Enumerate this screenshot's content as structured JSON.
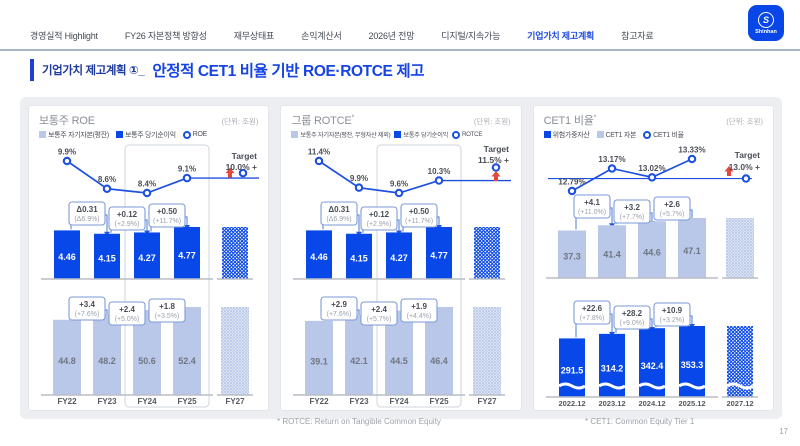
{
  "nav": {
    "items": [
      {
        "label": "경영실적 Highlight",
        "active": false
      },
      {
        "label": "FY26 자본정책 방향성",
        "active": false
      },
      {
        "label": "재무상태표",
        "active": false
      },
      {
        "label": "손익계산서",
        "active": false
      },
      {
        "label": "2026년 전망",
        "active": false
      },
      {
        "label": "디지털/지속가능",
        "active": false
      },
      {
        "label": "기업가치 제고계획",
        "active": true
      },
      {
        "label": "참고자료",
        "active": false
      }
    ]
  },
  "logo": {
    "mark": "S",
    "name": "Shinhan"
  },
  "title": {
    "prefix": "기업가치 제고계획 ①_",
    "main": "안정적 CET1 비율 기반 ROE·ROTCE 제고"
  },
  "footnotes": [
    "* ROTCE: Return on Tangible Common Equity",
    "* CET1: Common Equity Tier 1"
  ],
  "page_number": "17",
  "colors": {
    "brand_blue": "#0948E8",
    "bar_light": "#B9C8E8",
    "line_blue": "#1D50E0",
    "connector_blue": "#6C8FD8",
    "box_border": "#7E9AD8",
    "red_arrow": "#E5483D",
    "band_bg": "#ECEEF1",
    "title_blue": "#1543E4",
    "baseline_gray": "#B9BEC6"
  },
  "chart_data": [
    {
      "type": "bar",
      "title": "보통주 ROE",
      "sup": "",
      "unit": "(단위: 조원)",
      "legend": [
        {
          "swatch": "light",
          "label": "보통주 자기자본(평잔)"
        },
        {
          "swatch": "dark",
          "label": "보통주 당기순이익"
        },
        {
          "swatch": "circle",
          "label": "ROE"
        }
      ],
      "categories": [
        "FY22",
        "FY23",
        "FY24",
        "FY25"
      ],
      "future_category": "FY27",
      "line": {
        "name": "ROE",
        "values": [
          9.9,
          8.6,
          8.4,
          9.1
        ],
        "labels": [
          "9.9%",
          "8.6%",
          "8.4%",
          "9.1%"
        ],
        "target": 10.0,
        "target_text": "Target",
        "target_label": "10.0% +"
      },
      "series": [
        {
          "name": "보통주 당기순이익",
          "style": "dark",
          "values": [
            4.46,
            4.15,
            4.27,
            4.77
          ],
          "value_labels": [
            "4.46",
            "4.15",
            "4.27",
            "4.77"
          ],
          "changes": [
            {
              "abs": "Δ0.31",
              "pct": "(Δ6.9%)"
            },
            {
              "abs": "+0.12",
              "pct": "(+2.9%)"
            },
            {
              "abs": "+0.50",
              "pct": "(+11.7%)"
            }
          ]
        },
        {
          "name": "보통주 자기자본(평잔)",
          "style": "light",
          "values": [
            44.8,
            48.2,
            50.6,
            52.4
          ],
          "value_labels": [
            "44.8",
            "48.2",
            "50.6",
            "52.4"
          ],
          "changes": [
            {
              "abs": "+3.4",
              "pct": "(+7.6%)"
            },
            {
              "abs": "+2.4",
              "pct": "(+5.0%)"
            },
            {
              "abs": "+1.8",
              "pct": "(+3.5%)"
            }
          ]
        }
      ],
      "highlight_box": true
    },
    {
      "type": "bar",
      "title": "그룹 ROTCE",
      "sup": "*",
      "unit": "(단위: 조원)",
      "legend": [
        {
          "swatch": "light",
          "label": "보통주 자기자본(평잔, 무형자산 제외)"
        },
        {
          "swatch": "dark",
          "label": "보통주 당기순이익"
        },
        {
          "swatch": "circle",
          "label": "ROTCE"
        }
      ],
      "categories": [
        "FY22",
        "FY23",
        "FY24",
        "FY25"
      ],
      "future_category": "FY27",
      "line": {
        "name": "ROTCE",
        "values": [
          11.4,
          9.9,
          9.6,
          10.3
        ],
        "labels": [
          "11.4%",
          "9.9%",
          "9.6%",
          "10.3%"
        ],
        "target": 11.5,
        "target_text": "Target",
        "target_label": "11.5% +"
      },
      "series": [
        {
          "name": "보통주 당기순이익",
          "style": "dark",
          "values": [
            4.46,
            4.15,
            4.27,
            4.77
          ],
          "value_labels": [
            "4.46",
            "4.15",
            "4.27",
            "4.77"
          ],
          "changes": [
            {
              "abs": "Δ0.31",
              "pct": "(Δ6.9%)"
            },
            {
              "abs": "+0.12",
              "pct": "(+2.9%)"
            },
            {
              "abs": "+0.50",
              "pct": "(+11.7%)"
            }
          ]
        },
        {
          "name": "보통주 자기자본(평잔, 무형자산 제외)",
          "style": "light",
          "values": [
            39.1,
            42.1,
            44.5,
            46.4
          ],
          "value_labels": [
            "39.1",
            "42.1",
            "44.5",
            "46.4"
          ],
          "changes": [
            {
              "abs": "+2.9",
              "pct": "(+7.6%)"
            },
            {
              "abs": "+2.4",
              "pct": "(+5.7%)"
            },
            {
              "abs": "+1.9",
              "pct": "(+4.4%)"
            }
          ]
        }
      ],
      "highlight_box": true
    },
    {
      "type": "bar",
      "title": "CET1 비율",
      "sup": "*",
      "unit": "(단위: 조원)",
      "legend": [
        {
          "swatch": "dark",
          "label": "위험가중자산"
        },
        {
          "swatch": "light",
          "label": "CET1 자본"
        },
        {
          "swatch": "circle",
          "label": "CET1 비율"
        }
      ],
      "categories": [
        "2022.12",
        "2023.12",
        "2024.12",
        "2025.12"
      ],
      "future_category": "2027.12",
      "line": {
        "name": "CET1 비율",
        "values": [
          12.79,
          13.17,
          13.02,
          13.33
        ],
        "labels": [
          "12.79%",
          "13.17%",
          "13.02%",
          "13.33%"
        ],
        "target": 13.0,
        "target_text": "Target",
        "target_label": "13.0% +"
      },
      "series": [
        {
          "name": "CET1 자본",
          "style": "light",
          "values": [
            37.3,
            41.4,
            44.6,
            47.1
          ],
          "value_labels": [
            "37.3",
            "41.4",
            "44.6",
            "47.1"
          ],
          "changes": [
            {
              "abs": "+4.1",
              "pct": "(+11.0%)"
            },
            {
              "abs": "+3.2",
              "pct": "(+7.7%)"
            },
            {
              "abs": "+2.6",
              "pct": "(+5.7%)"
            }
          ]
        },
        {
          "name": "위험가중자산",
          "style": "dark",
          "values": [
            291.5,
            314.2,
            342.4,
            353.3
          ],
          "value_labels": [
            "291.5",
            "314.2",
            "342.4",
            "353.3"
          ],
          "changes": [
            {
              "abs": "+22.6",
              "pct": "(+7.8%)"
            },
            {
              "abs": "+28.2",
              "pct": "(+9.0%)"
            },
            {
              "abs": "+10.9",
              "pct": "(+3.2%)"
            }
          ]
        }
      ],
      "highlight_box": false
    }
  ]
}
